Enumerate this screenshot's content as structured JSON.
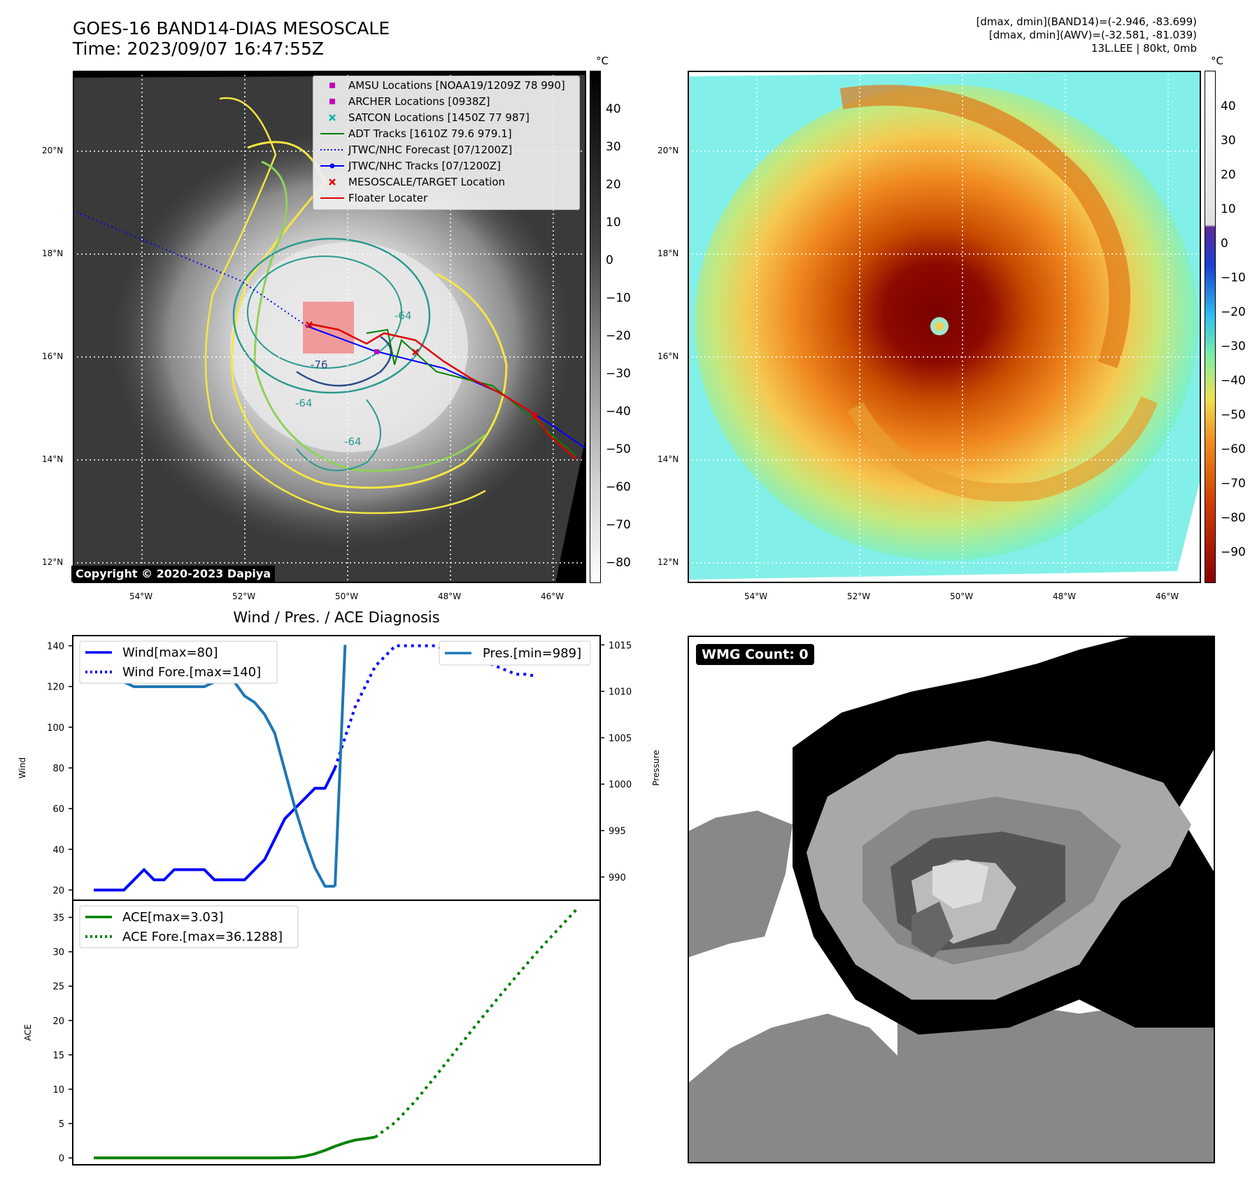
{
  "header": {
    "title_line1": "GOES-16 BAND14-DIAS MESOSCALE",
    "title_line2": "Time: 2023/09/07 16:47:55Z",
    "info_line1": "[dmax, dmin](BAND14)=(-2.946, -83.699)",
    "info_line2": "[dmax, dmin](AWV)=(-32.581, -81.039)",
    "info_line3": "13L.LEE | 80kt, 0mb"
  },
  "colors": {
    "wind": "#0000ff",
    "pressure": "#1f77b4",
    "ace": "#008000",
    "contour_yellow": "#f5e642",
    "contour_lightgreen": "#8fd15a",
    "contour_teal": "#2a9a8f",
    "contour_navy": "#2b4a8a",
    "track_red": "#e00000",
    "track_blue": "#0000ff",
    "floater_box": "#f08080"
  },
  "map_axes": {
    "lon_ticks": [
      "54°W",
      "52°W",
      "50°W",
      "48°W",
      "46°W"
    ],
    "lat_ticks": [
      "20°N",
      "18°N",
      "16°N",
      "14°N",
      "12°N"
    ]
  },
  "panel_ir": {
    "unit": "°C",
    "colorbar_ticks": [
      "40",
      "30",
      "20",
      "10",
      "0",
      "−10",
      "−20",
      "−30",
      "−40",
      "−50",
      "−60",
      "−70",
      "−80"
    ],
    "copyright": "Copyright © 2020-2023 Dapiya",
    "contour_labels": [
      "-64",
      "-64",
      "-64",
      "-76"
    ],
    "legend": [
      {
        "label": "AMSU Locations [NOAA19/1209Z 78 990]",
        "symbol": "square",
        "color": "#c000c0"
      },
      {
        "label": "ARCHER Locations [0938Z]",
        "symbol": "square",
        "color": "#c000c0"
      },
      {
        "label": "SATCON Locations [1450Z 77 987]",
        "symbol": "x",
        "color": "#00b0b0"
      },
      {
        "label": "ADT Tracks [1610Z 79.6 979.1]",
        "symbol": "line",
        "color": "#008000"
      },
      {
        "label": "JTWC/NHC Forecast [07/1200Z]",
        "symbol": "dotted",
        "color": "#0000ff"
      },
      {
        "label": "JTWC/NHC Tracks [07/1200Z]",
        "symbol": "line-dot",
        "color": "#0000ff"
      },
      {
        "label": "MESOSCALE/TARGET Location",
        "symbol": "x",
        "color": "#e00000"
      },
      {
        "label": "Floater Locater",
        "symbol": "line",
        "color": "#e00000"
      }
    ]
  },
  "panel_dias": {
    "unit": "°C",
    "colorbar_ticks": [
      "40",
      "30",
      "20",
      "10",
      "0",
      "−10",
      "−20",
      "−30",
      "−40",
      "−50",
      "−60",
      "−70",
      "−80",
      "−90"
    ]
  },
  "panel_wmg": {
    "badge": "WMG Count: 0"
  },
  "chart_data": [
    {
      "type": "line",
      "title": "Wind / Pres. / ACE Diagnosis",
      "ylabel": "Wind",
      "y2label": "Pressure",
      "ylim": [
        15,
        145
      ],
      "y2lim": [
        987.5,
        1016
      ],
      "yticks": [
        "20",
        "40",
        "60",
        "80",
        "100",
        "120",
        "140"
      ],
      "y2ticks": [
        "990",
        "995",
        "1000",
        "1005",
        "1010",
        "1015"
      ],
      "series": [
        {
          "name": "Wind[max=80]",
          "axis": "left",
          "style": "solid",
          "x": [
            0,
            1,
            2,
            3,
            4,
            5,
            6,
            7,
            8,
            9,
            10,
            11,
            12,
            13,
            14,
            15,
            16,
            17,
            18,
            19,
            20,
            21,
            22,
            23,
            24
          ],
          "y": [
            20,
            20,
            20,
            20,
            25,
            30,
            25,
            25,
            30,
            30,
            30,
            30,
            25,
            25,
            25,
            25,
            30,
            35,
            45,
            55,
            60,
            65,
            70,
            70,
            80
          ]
        },
        {
          "name": "Wind Fore.[max=140]",
          "axis": "left",
          "style": "dotted",
          "x": [
            24,
            25,
            26,
            27,
            28,
            29,
            30,
            31,
            32,
            33,
            34,
            35,
            36,
            37,
            38,
            39,
            40,
            41,
            42,
            43,
            44
          ],
          "y": [
            80,
            95,
            110,
            120,
            130,
            135,
            140,
            140,
            140,
            140,
            140,
            138,
            135,
            135,
            132,
            132,
            130,
            128,
            126,
            126,
            125
          ]
        },
        {
          "name": "Pres.[min=989]",
          "axis": "right",
          "style": "solid",
          "x": [
            0,
            1,
            2,
            3,
            4,
            5,
            6,
            7,
            8,
            9,
            10,
            11,
            12,
            13,
            14,
            15,
            16,
            17,
            18,
            19,
            20,
            21,
            22,
            23,
            24
          ],
          "y": [
            1011,
            1011,
            1011,
            1011,
            1010.5,
            1010.5,
            1010.5,
            1010.5,
            1010.5,
            1010.5,
            1010.5,
            1010.5,
            1011,
            1011,
            1011,
            1009.5,
            1008.8,
            1007.5,
            1005.5,
            1001.5,
            997.5,
            994,
            991,
            989,
            989
          ]
        },
        {
          "name": "",
          "axis": "right",
          "style": "solid",
          "x": [
            24,
            25
          ],
          "y": [
            989,
            1015
          ]
        }
      ]
    },
    {
      "type": "line",
      "ylabel": "ACE",
      "ylim": [
        -1,
        37.5
      ],
      "yticks": [
        "0",
        "5",
        "10",
        "15",
        "20",
        "25",
        "30",
        "35"
      ],
      "series": [
        {
          "name": "ACE[max=3.03]",
          "style": "solid",
          "x": [
            0,
            2,
            4,
            6,
            8,
            10,
            12,
            14,
            16,
            18,
            20,
            21,
            22,
            23,
            24
          ],
          "y": [
            0,
            0,
            0,
            0,
            0,
            0,
            0,
            0,
            0,
            0,
            0.05,
            0.25,
            0.6,
            1.1,
            1.7
          ]
        },
        {
          "name": "",
          "style": "solid",
          "x": [
            24,
            25,
            26,
            27,
            28
          ],
          "y": [
            1.7,
            2.2,
            2.6,
            2.8,
            3.03
          ]
        },
        {
          "name": "ACE Fore.[max=36.1288]",
          "style": "dotted",
          "x": [
            28,
            30,
            32,
            34,
            36,
            38,
            40,
            42,
            44,
            46,
            48
          ],
          "y": [
            3.03,
            5.2,
            8.3,
            11.9,
            15.6,
            19.3,
            22.9,
            26.4,
            29.8,
            33.0,
            36.1288
          ]
        }
      ]
    }
  ]
}
